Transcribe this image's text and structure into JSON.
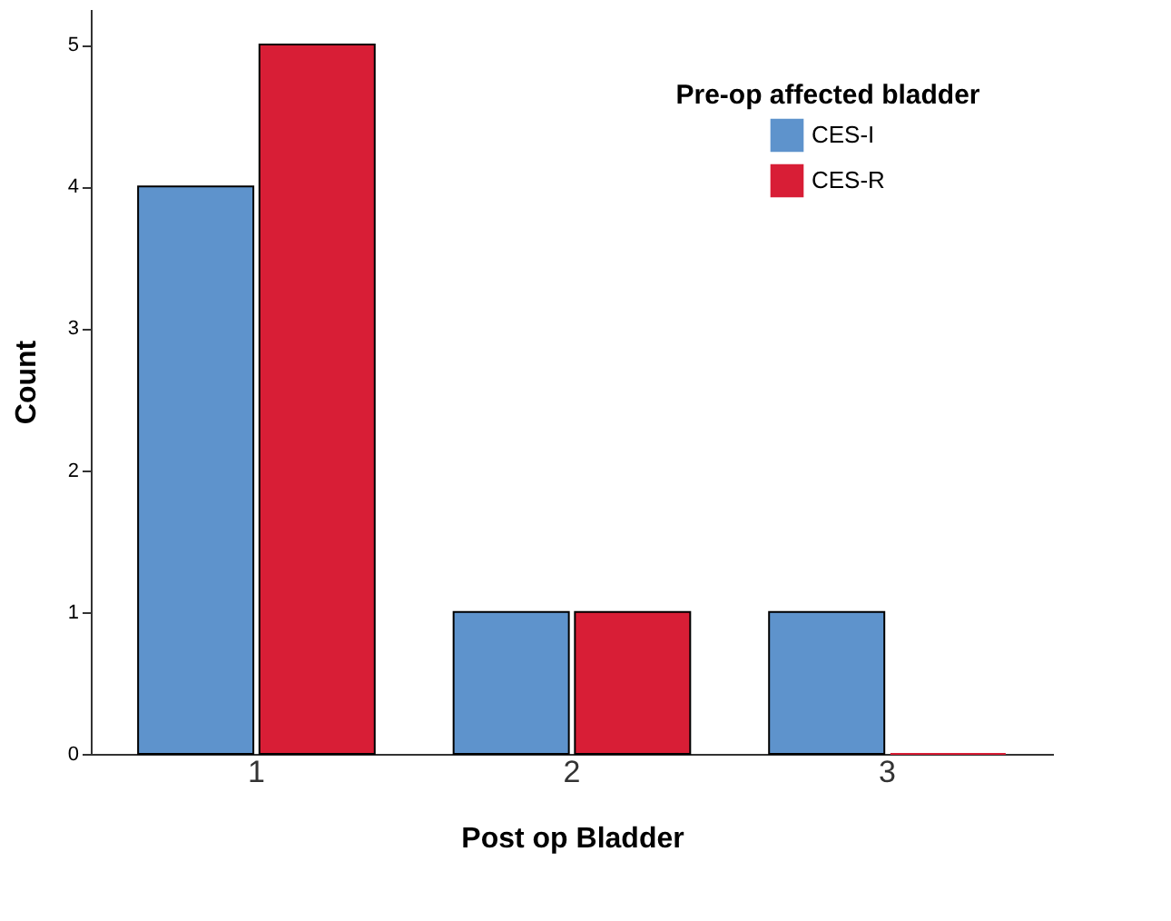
{
  "chart_data": {
    "type": "bar",
    "xlabel": "Post op Bladder",
    "ylabel": "Count",
    "legend_title": "Pre-op affected bladder",
    "categories": [
      "1",
      "2",
      "3"
    ],
    "series": [
      {
        "name": "CES-I",
        "color": "#5e93cc",
        "values": [
          4,
          1,
          1
        ]
      },
      {
        "name": "CES-R",
        "color": "#d81e36",
        "values": [
          5,
          1,
          0
        ]
      }
    ],
    "ylim": [
      0,
      5.25
    ],
    "yticks": [
      0,
      1,
      2,
      3,
      4,
      5
    ],
    "grid": false,
    "legend": "top right"
  }
}
